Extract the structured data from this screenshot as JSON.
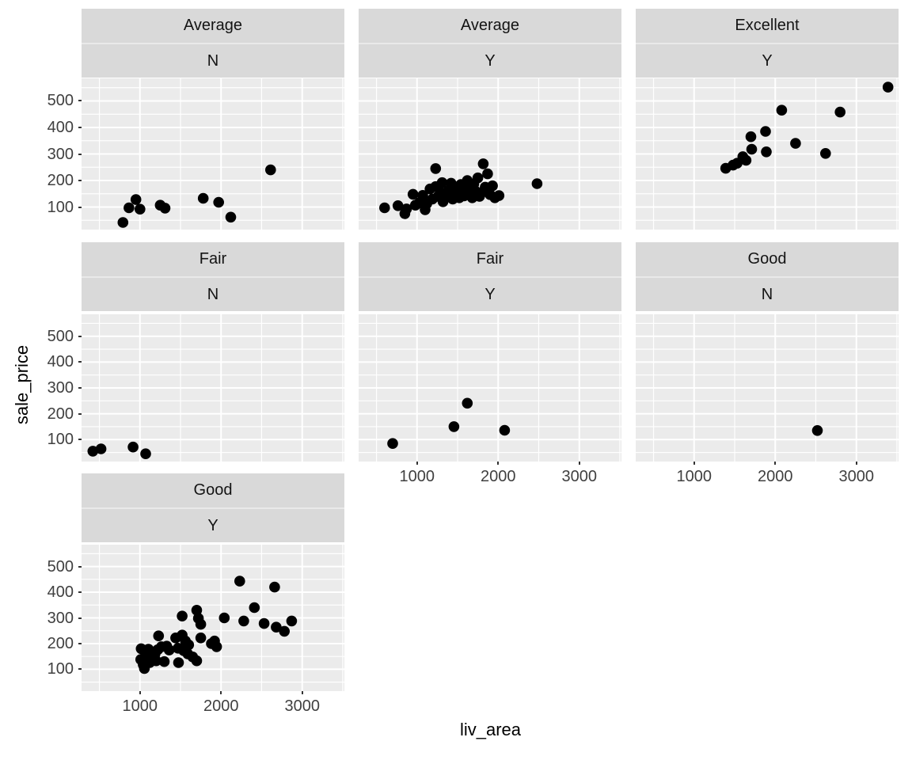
{
  "chart_data": {
    "type": "scatter",
    "title": "",
    "xlabel": "liv_area",
    "ylabel": "sale_price",
    "legend": "none",
    "grid": true,
    "xlim": [
      280,
      3520
    ],
    "ylim": [
      15,
      585
    ],
    "x_major_ticks": [
      1000,
      2000,
      3000
    ],
    "x_minor_ticks": [
      500,
      1500,
      2500,
      3500
    ],
    "y_major_ticks": [
      100,
      200,
      300,
      400,
      500
    ],
    "y_minor_ticks": [
      50,
      150,
      250,
      350,
      450,
      550
    ],
    "colors": {
      "point": "#000000",
      "panel_bg": "#ebebeb",
      "strip_bg": "#d9d9d9",
      "grid": "#ffffff",
      "tick_text": "#404040",
      "tick_mark": "#333333",
      "title_text": "#000000"
    },
    "facets": [
      {
        "strip1": "Average",
        "strip2": "N",
        "row": 0,
        "col": 0,
        "show_x_axis": false,
        "points": [
          [
            790,
            42
          ],
          [
            865,
            97
          ],
          [
            950,
            128
          ],
          [
            1000,
            92
          ],
          [
            1250,
            107
          ],
          [
            1310,
            96
          ],
          [
            1780,
            133
          ],
          [
            1970,
            118
          ],
          [
            2120,
            62
          ],
          [
            2610,
            240
          ]
        ]
      },
      {
        "strip1": "Average",
        "strip2": "Y",
        "row": 0,
        "col": 1,
        "show_x_axis": false,
        "points": [
          [
            600,
            97
          ],
          [
            765,
            105
          ],
          [
            850,
            75
          ],
          [
            870,
            93
          ],
          [
            950,
            148
          ],
          [
            980,
            107
          ],
          [
            1030,
            117
          ],
          [
            1070,
            144
          ],
          [
            1100,
            90
          ],
          [
            1120,
            113
          ],
          [
            1160,
            168
          ],
          [
            1190,
            130
          ],
          [
            1230,
            245
          ],
          [
            1230,
            177
          ],
          [
            1260,
            140
          ],
          [
            1290,
            155
          ],
          [
            1310,
            192
          ],
          [
            1320,
            120
          ],
          [
            1350,
            135
          ],
          [
            1380,
            160
          ],
          [
            1400,
            145
          ],
          [
            1420,
            190
          ],
          [
            1440,
            130
          ],
          [
            1460,
            172
          ],
          [
            1480,
            148
          ],
          [
            1500,
            160
          ],
          [
            1520,
            135
          ],
          [
            1540,
            185
          ],
          [
            1560,
            152
          ],
          [
            1580,
            142
          ],
          [
            1600,
            158
          ],
          [
            1620,
            200
          ],
          [
            1640,
            170
          ],
          [
            1660,
            150
          ],
          [
            1680,
            135
          ],
          [
            1700,
            187
          ],
          [
            1720,
            160
          ],
          [
            1750,
            210
          ],
          [
            1770,
            140
          ],
          [
            1800,
            155
          ],
          [
            1816,
            263
          ],
          [
            1840,
            175
          ],
          [
            1870,
            225
          ],
          [
            1900,
            147
          ],
          [
            1930,
            180
          ],
          [
            1960,
            135
          ],
          [
            2010,
            143
          ],
          [
            2480,
            188
          ]
        ]
      },
      {
        "strip1": "Excellent",
        "strip2": "Y",
        "row": 0,
        "col": 2,
        "show_x_axis": false,
        "points": [
          [
            1390,
            246
          ],
          [
            1480,
            258
          ],
          [
            1530,
            265
          ],
          [
            1600,
            290
          ],
          [
            1640,
            276
          ],
          [
            1700,
            365
          ],
          [
            1710,
            318
          ],
          [
            1880,
            385
          ],
          [
            1890,
            308
          ],
          [
            2080,
            465
          ],
          [
            2250,
            340
          ],
          [
            2620,
            302
          ],
          [
            2800,
            458
          ],
          [
            3390,
            552
          ]
        ]
      },
      {
        "strip1": "Fair",
        "strip2": "N",
        "row": 1,
        "col": 0,
        "show_x_axis": false,
        "points": [
          [
            420,
            55
          ],
          [
            520,
            64
          ],
          [
            915,
            71
          ],
          [
            1070,
            45
          ]
        ]
      },
      {
        "strip1": "Fair",
        "strip2": "Y",
        "row": 1,
        "col": 1,
        "show_x_axis": true,
        "points": [
          [
            700,
            85
          ],
          [
            1455,
            150
          ],
          [
            1620,
            241
          ],
          [
            2080,
            136
          ]
        ]
      },
      {
        "strip1": "Good",
        "strip2": "N",
        "row": 1,
        "col": 2,
        "show_x_axis": true,
        "points": [
          [
            2520,
            135
          ]
        ]
      },
      {
        "strip1": "Good",
        "strip2": "Y",
        "row": 2,
        "col": 0,
        "show_x_axis": true,
        "points": [
          [
            1010,
            138
          ],
          [
            1015,
            180
          ],
          [
            1040,
            118
          ],
          [
            1055,
            103
          ],
          [
            1070,
            156
          ],
          [
            1100,
            148
          ],
          [
            1105,
            178
          ],
          [
            1120,
            126
          ],
          [
            1145,
            168
          ],
          [
            1160,
            143
          ],
          [
            1185,
            158
          ],
          [
            1200,
            133
          ],
          [
            1220,
            176
          ],
          [
            1265,
            188
          ],
          [
            1230,
            230
          ],
          [
            1300,
            130
          ],
          [
            1330,
            190
          ],
          [
            1360,
            175
          ],
          [
            1440,
            222
          ],
          [
            1470,
            182
          ],
          [
            1475,
            126
          ],
          [
            1520,
            233
          ],
          [
            1520,
            307
          ],
          [
            1540,
            172
          ],
          [
            1560,
            210
          ],
          [
            1590,
            160
          ],
          [
            1600,
            195
          ],
          [
            1650,
            148
          ],
          [
            1700,
            133
          ],
          [
            1700,
            330
          ],
          [
            1720,
            298
          ],
          [
            1750,
            222
          ],
          [
            1750,
            275
          ],
          [
            1880,
            200
          ],
          [
            1920,
            210
          ],
          [
            1945,
            188
          ],
          [
            2040,
            300
          ],
          [
            2230,
            443
          ],
          [
            2280,
            288
          ],
          [
            2410,
            340
          ],
          [
            2530,
            278
          ],
          [
            2660,
            420
          ],
          [
            2680,
            264
          ],
          [
            2780,
            248
          ],
          [
            2870,
            288
          ]
        ]
      }
    ]
  }
}
